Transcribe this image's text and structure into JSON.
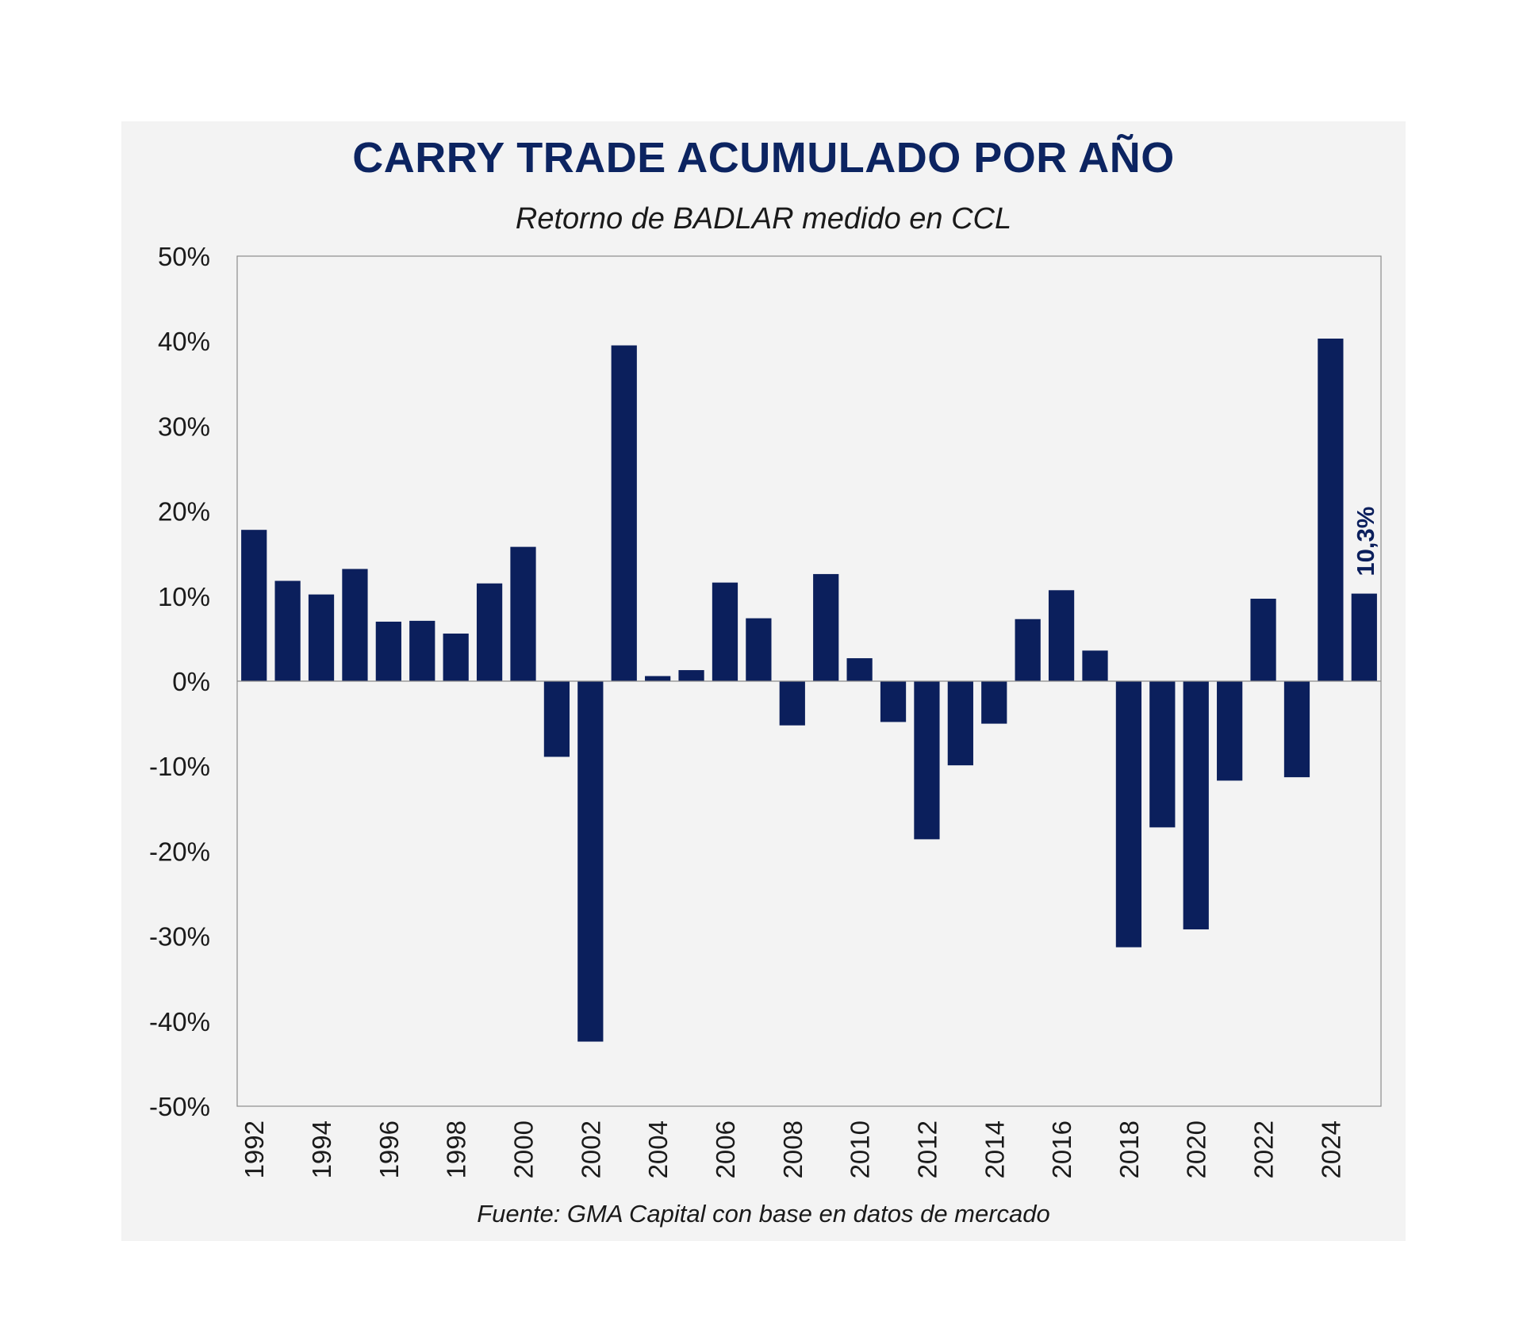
{
  "chart_data": {
    "type": "bar",
    "title": "CARRY TRADE ACUMULADO POR AÑO",
    "subtitle": "Retorno de BADLAR medido en CCL",
    "source": "Fuente: GMA Capital con base en datos de mercado",
    "xlabel": "",
    "ylabel": "",
    "ylim": [
      -50,
      50
    ],
    "y_ticks": [
      {
        "value": 50,
        "label": "50%"
      },
      {
        "value": 40,
        "label": "40%"
      },
      {
        "value": 30,
        "label": "30%"
      },
      {
        "value": 20,
        "label": "20%"
      },
      {
        "value": 10,
        "label": "10%"
      },
      {
        "value": 0,
        "label": "0%"
      },
      {
        "value": -10,
        "label": "-10%"
      },
      {
        "value": -20,
        "label": "-20%"
      },
      {
        "value": -30,
        "label": "-30%"
      },
      {
        "value": -40,
        "label": "-40%"
      },
      {
        "value": -50,
        "label": "-50%"
      }
    ],
    "categories": [
      "1992",
      "1993",
      "1994",
      "1995",
      "1996",
      "1997",
      "1998",
      "1999",
      "2000",
      "2001",
      "2002",
      "2003",
      "2004",
      "2005",
      "2006",
      "2007",
      "2008",
      "2009",
      "2010",
      "2011",
      "2012",
      "2013",
      "2014",
      "2015",
      "2016",
      "2017",
      "2018",
      "2019",
      "2020",
      "2021",
      "2022",
      "2023",
      "2024",
      "2025"
    ],
    "x_tick_labels": [
      "1992",
      "1994",
      "1996",
      "1998",
      "2000",
      "2002",
      "2004",
      "2006",
      "2008",
      "2010",
      "2012",
      "2014",
      "2016",
      "2018",
      "2020",
      "2022",
      "2024"
    ],
    "values": [
      17.8,
      11.8,
      10.2,
      13.2,
      7.0,
      7.1,
      5.6,
      11.5,
      15.8,
      -8.9,
      -42.4,
      39.5,
      0.6,
      1.3,
      11.6,
      7.4,
      -5.2,
      12.6,
      2.7,
      -4.8,
      -18.6,
      -9.9,
      -5.0,
      7.3,
      10.7,
      3.6,
      -31.3,
      -17.2,
      -29.2,
      -11.7,
      9.7,
      -11.3,
      40.3,
      10.3
    ],
    "bar_color": "#0b1f5c",
    "annotations": [
      {
        "category": "2025",
        "text": "10,3%",
        "orientation": "vertical"
      }
    ]
  }
}
